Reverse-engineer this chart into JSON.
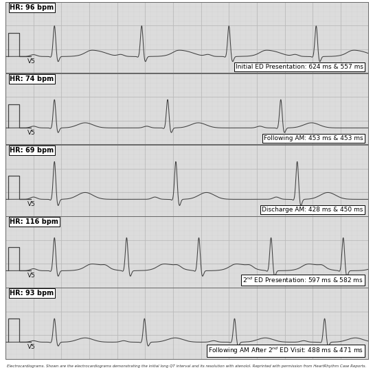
{
  "panels": [
    {
      "hr": "HR: 96 bpm",
      "label": "V5",
      "annotation": "Initial ED Presentation: 624 ms & 557 ms",
      "ann_pre": "",
      "ann_sup": "",
      "ann_post": ""
    },
    {
      "hr": "HR: 74 bpm",
      "label": "V5",
      "annotation": "Following AM: 453 ms & 453 ms",
      "ann_pre": "",
      "ann_sup": "",
      "ann_post": ""
    },
    {
      "hr": "HR: 69 bpm",
      "label": "V5",
      "annotation": "Discharge AM: 428 ms & 450 ms",
      "ann_pre": "",
      "ann_sup": "",
      "ann_post": ""
    },
    {
      "hr": "HR: 116 bpm",
      "label": "V5",
      "annotation": "",
      "ann_pre": "2",
      "ann_sup": "nd",
      "ann_post": " ED Presentation: 597 ms & 582 ms"
    },
    {
      "hr": "HR: 93 bpm",
      "label": "V5",
      "annotation": "",
      "ann_pre": "Following AM After 2",
      "ann_sup": "nd",
      "ann_post": " ED Visit: 488 ms & 471 ms"
    }
  ],
  "grid_minor_color": "#d4d4d4",
  "grid_major_color": "#bbbbbb",
  "bg_color": "#dcdcdc",
  "ecg_color": "#404040",
  "border_color": "#888888",
  "outer_bg": "#ffffff",
  "fig_width": 5.43,
  "fig_height": 5.39,
  "caption": "Electrocardiograms. Shown are the electrocardiograms demonstrating the initial long QT interval and its resolution with atenolol. Reprinted with permission from HeartRhythm Case Reports."
}
